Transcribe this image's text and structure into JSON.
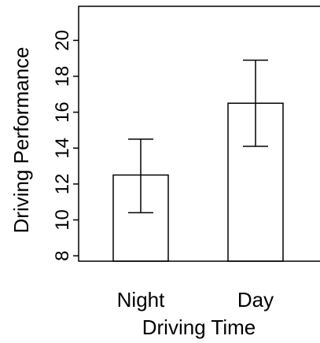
{
  "chart_data": {
    "type": "bar",
    "categories": [
      "Night",
      "Day"
    ],
    "values": [
      12.5,
      16.5
    ],
    "error_bars": [
      {
        "low": 10.4,
        "high": 14.5
      },
      {
        "low": 14.1,
        "high": 18.9
      }
    ],
    "xlabel": "Driving Time",
    "ylabel": "Driving Performance",
    "yticks": [
      8,
      10,
      12,
      14,
      16,
      18,
      20
    ],
    "ytick_labels": [
      "8",
      "10",
      "12",
      "14",
      "16",
      "18",
      "20"
    ],
    "ylim": [
      7.7,
      21.9
    ],
    "grid": false,
    "colors": {
      "bar_fill": "#ffffff",
      "stroke": "#000000",
      "background": "#ffffff"
    }
  }
}
